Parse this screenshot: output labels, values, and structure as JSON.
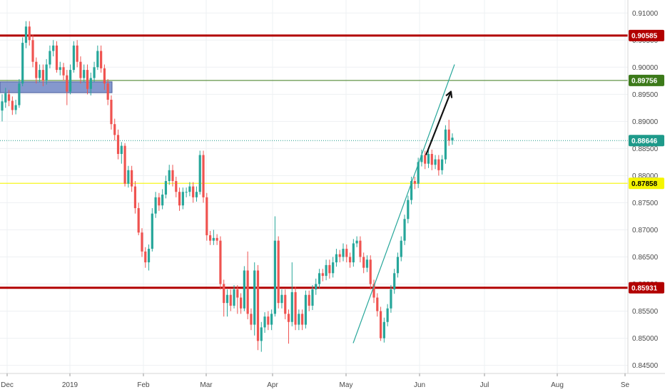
{
  "chart_data": {
    "type": "candlestick",
    "y_ticks": [
      "0.91000",
      "0.90500",
      "0.90000",
      "0.89500",
      "0.89000",
      "0.88500",
      "0.88000",
      "0.87500",
      "0.87000",
      "0.86500",
      "0.86000",
      "0.85500",
      "0.85000",
      "0.84500"
    ],
    "y_tick_values": [
      0.91,
      0.905,
      0.9,
      0.895,
      0.89,
      0.885,
      0.88,
      0.875,
      0.87,
      0.865,
      0.86,
      0.855,
      0.85,
      0.845
    ],
    "ylim": [
      0.8435,
      0.9124
    ],
    "x_ticks": [
      "Dec",
      "2019",
      "Feb",
      "Mar",
      "Apr",
      "May",
      "Jun",
      "Jul",
      "Aug",
      "Se"
    ],
    "levels": [
      {
        "label": "0.90585",
        "value": 0.90585,
        "color": "#b20000",
        "style": "resistance"
      },
      {
        "label": "0.89756",
        "value": 0.89756,
        "color": "#3c7a1a",
        "style": "target"
      },
      {
        "label": "0.88646",
        "value": 0.88646,
        "color": "#1e9a8a",
        "style": "current"
      },
      {
        "label": "0.87858",
        "value": 0.87858,
        "color": "#f5f500",
        "style": "support-minor"
      },
      {
        "label": "0.85931",
        "value": 0.85931,
        "color": "#b20000",
        "style": "support"
      }
    ],
    "zone": {
      "from": 0.8953,
      "to": 0.8973,
      "color": "#7086c4"
    },
    "trendline": {
      "start_value": 0.8491,
      "end_value": 0.9005
    },
    "arrow": {
      "start_value": 0.8838,
      "end_value": 0.8955
    },
    "candles": [
      [
        0.892,
        0.8937,
        0.89,
        0.895
      ],
      [
        0.8935,
        0.8952,
        0.8925,
        0.8962
      ],
      [
        0.895,
        0.8938,
        0.8928,
        0.8958
      ],
      [
        0.8938,
        0.8921,
        0.8912,
        0.8946
      ],
      [
        0.8921,
        0.893,
        0.8913,
        0.894
      ],
      [
        0.893,
        0.897,
        0.8925,
        0.8978
      ],
      [
        0.897,
        0.9045,
        0.8965,
        0.9055
      ],
      [
        0.9045,
        0.9075,
        0.9035,
        0.9085
      ],
      [
        0.9075,
        0.905,
        0.904,
        0.9085
      ],
      [
        0.905,
        0.901,
        0.9,
        0.906
      ],
      [
        0.901,
        0.898,
        0.897,
        0.9018
      ],
      [
        0.898,
        0.8995,
        0.8972,
        0.9005
      ],
      [
        0.8995,
        0.8975,
        0.8965,
        0.9005
      ],
      [
        0.8975,
        0.9005,
        0.8968,
        0.9015
      ],
      [
        0.9005,
        0.903,
        0.8998,
        0.904
      ],
      [
        0.903,
        0.904,
        0.902,
        0.905
      ],
      [
        0.904,
        0.8995,
        0.899,
        0.9048
      ],
      [
        0.8995,
        0.9,
        0.8985,
        0.901
      ],
      [
        0.9,
        0.8985,
        0.8975,
        0.9008
      ],
      [
        0.8985,
        0.8955,
        0.893,
        0.8995
      ],
      [
        0.8955,
        0.8995,
        0.895,
        0.9005
      ],
      [
        0.8995,
        0.904,
        0.899,
        0.9048
      ],
      [
        0.904,
        0.901,
        0.9,
        0.905
      ],
      [
        0.901,
        0.898,
        0.897,
        0.902
      ],
      [
        0.898,
        0.8995,
        0.8972,
        0.9005
      ],
      [
        0.8995,
        0.896,
        0.895,
        0.9005
      ],
      [
        0.896,
        0.898,
        0.8948,
        0.899
      ],
      [
        0.898,
        0.9,
        0.8972,
        0.901
      ],
      [
        0.9,
        0.903,
        0.8995,
        0.904
      ],
      [
        0.903,
        0.8998,
        0.899,
        0.904
      ],
      [
        0.8998,
        0.897,
        0.8958,
        0.9005
      ],
      [
        0.897,
        0.894,
        0.893,
        0.8978
      ],
      [
        0.894,
        0.8895,
        0.8885,
        0.8948
      ],
      [
        0.8895,
        0.8875,
        0.8865,
        0.8905
      ],
      [
        0.8875,
        0.884,
        0.883,
        0.8885
      ],
      [
        0.884,
        0.8855,
        0.8822,
        0.8862
      ],
      [
        0.8855,
        0.8785,
        0.878,
        0.886
      ],
      [
        0.8785,
        0.881,
        0.8778,
        0.8818
      ],
      [
        0.881,
        0.878,
        0.877,
        0.8818
      ],
      [
        0.878,
        0.874,
        0.873,
        0.879
      ],
      [
        0.874,
        0.8695,
        0.869,
        0.875
      ],
      [
        0.8695,
        0.866,
        0.865,
        0.8703
      ],
      [
        0.866,
        0.864,
        0.863,
        0.8668
      ],
      [
        0.864,
        0.8665,
        0.8625,
        0.8673
      ],
      [
        0.8665,
        0.873,
        0.866,
        0.874
      ],
      [
        0.873,
        0.876,
        0.8722,
        0.877
      ],
      [
        0.876,
        0.8745,
        0.8735,
        0.8768
      ],
      [
        0.8745,
        0.8765,
        0.8738,
        0.8775
      ],
      [
        0.8765,
        0.879,
        0.8758,
        0.88
      ],
      [
        0.879,
        0.881,
        0.8783,
        0.882
      ],
      [
        0.881,
        0.879,
        0.878,
        0.882
      ],
      [
        0.879,
        0.877,
        0.876,
        0.8798
      ],
      [
        0.877,
        0.8745,
        0.8735,
        0.8778
      ],
      [
        0.8745,
        0.877,
        0.8738,
        0.8778
      ],
      [
        0.877,
        0.877,
        0.876,
        0.8778
      ],
      [
        0.877,
        0.878,
        0.8762,
        0.8788
      ],
      [
        0.878,
        0.876,
        0.875,
        0.8788
      ],
      [
        0.876,
        0.877,
        0.8752,
        0.878
      ],
      [
        0.877,
        0.8838,
        0.8765,
        0.8846
      ],
      [
        0.8838,
        0.876,
        0.875,
        0.8846
      ],
      [
        0.876,
        0.869,
        0.868,
        0.8768
      ],
      [
        0.869,
        0.868,
        0.8672,
        0.8698
      ],
      [
        0.868,
        0.8685,
        0.8672,
        0.87
      ],
      [
        0.8685,
        0.868,
        0.8672,
        0.8692
      ],
      [
        0.868,
        0.86,
        0.859,
        0.8688
      ],
      [
        0.86,
        0.8565,
        0.854,
        0.8608
      ],
      [
        0.8565,
        0.858,
        0.854,
        0.859
      ],
      [
        0.858,
        0.856,
        0.855,
        0.859
      ],
      [
        0.856,
        0.859,
        0.8555,
        0.8598
      ],
      [
        0.859,
        0.8575,
        0.8545,
        0.8598
      ],
      [
        0.8575,
        0.8555,
        0.8545,
        0.8583
      ],
      [
        0.8555,
        0.8625,
        0.855,
        0.8633
      ],
      [
        0.8625,
        0.8545,
        0.8535,
        0.866
      ],
      [
        0.8545,
        0.8525,
        0.8515,
        0.8555
      ],
      [
        0.8525,
        0.8625,
        0.8505,
        0.864
      ],
      [
        0.8625,
        0.8495,
        0.8478,
        0.8635
      ],
      [
        0.8495,
        0.852,
        0.8475,
        0.853
      ],
      [
        0.852,
        0.854,
        0.851,
        0.8548
      ],
      [
        0.854,
        0.8525,
        0.8515,
        0.855
      ],
      [
        0.8525,
        0.8545,
        0.8515,
        0.8553
      ],
      [
        0.8545,
        0.868,
        0.854,
        0.8725
      ],
      [
        0.868,
        0.8565,
        0.8555,
        0.8688
      ],
      [
        0.8565,
        0.858,
        0.8555,
        0.859
      ],
      [
        0.858,
        0.8545,
        0.8535,
        0.859
      ],
      [
        0.8545,
        0.853,
        0.849,
        0.8553
      ],
      [
        0.853,
        0.8585,
        0.8522,
        0.864
      ],
      [
        0.8585,
        0.8525,
        0.8515,
        0.8595
      ],
      [
        0.8525,
        0.8545,
        0.8515,
        0.8553
      ],
      [
        0.8545,
        0.8525,
        0.8515,
        0.8553
      ],
      [
        0.8525,
        0.858,
        0.8518,
        0.8588
      ],
      [
        0.858,
        0.856,
        0.855,
        0.8588
      ],
      [
        0.856,
        0.859,
        0.8552,
        0.8598
      ],
      [
        0.859,
        0.86,
        0.858,
        0.861
      ],
      [
        0.86,
        0.862,
        0.8592,
        0.8628
      ],
      [
        0.862,
        0.8615,
        0.8605,
        0.8628
      ],
      [
        0.8615,
        0.8635,
        0.8607,
        0.8645
      ],
      [
        0.8635,
        0.862,
        0.861,
        0.8645
      ],
      [
        0.862,
        0.864,
        0.8612,
        0.865
      ],
      [
        0.864,
        0.8655,
        0.8632,
        0.8665
      ],
      [
        0.8655,
        0.865,
        0.864,
        0.8663
      ],
      [
        0.865,
        0.8665,
        0.8642,
        0.8675
      ],
      [
        0.8665,
        0.865,
        0.864,
        0.8673
      ],
      [
        0.865,
        0.864,
        0.863,
        0.8658
      ],
      [
        0.864,
        0.8675,
        0.8632,
        0.8683
      ],
      [
        0.8675,
        0.868,
        0.8668,
        0.8688
      ],
      [
        0.868,
        0.865,
        0.864,
        0.8688
      ],
      [
        0.865,
        0.863,
        0.862,
        0.8658
      ],
      [
        0.863,
        0.8645,
        0.8622,
        0.8653
      ],
      [
        0.8645,
        0.86,
        0.859,
        0.8653
      ],
      [
        0.86,
        0.8575,
        0.8565,
        0.8608
      ],
      [
        0.8575,
        0.855,
        0.854,
        0.8583
      ],
      [
        0.855,
        0.85,
        0.8495,
        0.8558
      ],
      [
        0.85,
        0.853,
        0.8492,
        0.8538
      ],
      [
        0.853,
        0.8555,
        0.8522,
        0.8563
      ],
      [
        0.8555,
        0.859,
        0.8547,
        0.8598
      ],
      [
        0.859,
        0.862,
        0.8582,
        0.8628
      ],
      [
        0.862,
        0.865,
        0.8612,
        0.8658
      ],
      [
        0.865,
        0.868,
        0.8642,
        0.8688
      ],
      [
        0.868,
        0.872,
        0.8672,
        0.8728
      ],
      [
        0.872,
        0.8755,
        0.8712,
        0.8763
      ],
      [
        0.8755,
        0.879,
        0.8747,
        0.8798
      ],
      [
        0.879,
        0.8785,
        0.8775,
        0.8798
      ],
      [
        0.8785,
        0.8825,
        0.8777,
        0.8833
      ],
      [
        0.8825,
        0.8838,
        0.8817,
        0.8848
      ],
      [
        0.8838,
        0.8822,
        0.8812,
        0.8846
      ],
      [
        0.8822,
        0.884,
        0.8814,
        0.8848
      ],
      [
        0.884,
        0.882,
        0.881,
        0.8848
      ],
      [
        0.882,
        0.883,
        0.8812,
        0.8838
      ],
      [
        0.883,
        0.881,
        0.88,
        0.8838
      ],
      [
        0.881,
        0.883,
        0.8802,
        0.8838
      ],
      [
        0.883,
        0.8885,
        0.8822,
        0.8893
      ],
      [
        0.8885,
        0.8865,
        0.8855,
        0.8903
      ],
      [
        0.8865,
        0.887,
        0.8857,
        0.8878
      ]
    ]
  }
}
